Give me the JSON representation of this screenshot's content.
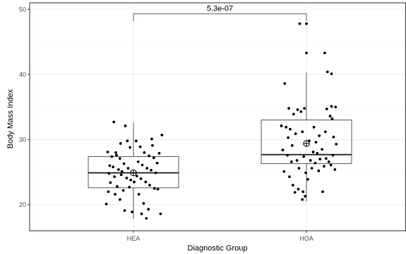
{
  "chart_data": {
    "type": "box",
    "title": "",
    "xlabel": "Diagnostic Group",
    "ylabel": "Body Mass Index",
    "ylim": [
      16,
      51
    ],
    "y_ticks": [
      20,
      30,
      40,
      50
    ],
    "categories": [
      "HEA",
      "HOA"
    ],
    "grid": true,
    "boxes": [
      {
        "category": "HEA",
        "whisker_low": 17.8,
        "q1": 22.6,
        "median": 24.9,
        "q3": 27.4,
        "whisker_high": 32.6,
        "mean": 24.9
      },
      {
        "category": "HOA",
        "whisker_low": 20.5,
        "q1": 26.3,
        "median": 27.7,
        "q3": 33.0,
        "whisker_high": 40.3,
        "mean": 29.4
      }
    ],
    "points": {
      "HEA": [
        {
          "x": -0.38,
          "y": 28.1
        },
        {
          "x": -0.32,
          "y": 27.4
        },
        {
          "x": -0.26,
          "y": 28.0
        },
        {
          "x": -0.2,
          "y": 27.1
        },
        {
          "x": -0.14,
          "y": 26.3
        },
        {
          "x": -0.35,
          "y": 26.0
        },
        {
          "x": -0.3,
          "y": 25.8
        },
        {
          "x": -0.22,
          "y": 25.4
        },
        {
          "x": -0.17,
          "y": 25.1
        },
        {
          "x": -0.08,
          "y": 25.6
        },
        {
          "x": -0.36,
          "y": 24.8
        },
        {
          "x": -0.28,
          "y": 24.3
        },
        {
          "x": -0.18,
          "y": 24.6
        },
        {
          "x": -0.1,
          "y": 24.1
        },
        {
          "x": -0.04,
          "y": 23.8
        },
        {
          "x": -0.34,
          "y": 23.4
        },
        {
          "x": -0.24,
          "y": 22.8
        },
        {
          "x": -0.15,
          "y": 22.2
        },
        {
          "x": -0.06,
          "y": 22.7
        },
        {
          "x": -0.37,
          "y": 22.0
        },
        {
          "x": -0.27,
          "y": 21.6
        },
        {
          "x": -0.2,
          "y": 20.8
        },
        {
          "x": -0.4,
          "y": 20.1
        },
        {
          "x": -0.13,
          "y": 19.1
        },
        {
          "x": -0.02,
          "y": 18.9
        },
        {
          "x": -0.29,
          "y": 32.7
        },
        {
          "x": -0.12,
          "y": 32.1
        },
        {
          "x": -0.19,
          "y": 29.4
        },
        {
          "x": -0.09,
          "y": 29.8
        },
        {
          "x": -0.05,
          "y": 28.8
        },
        {
          "x": 0.04,
          "y": 29.8
        },
        {
          "x": 0.1,
          "y": 28.9
        },
        {
          "x": 0.16,
          "y": 28.0
        },
        {
          "x": 0.23,
          "y": 27.5
        },
        {
          "x": 0.3,
          "y": 27.2
        },
        {
          "x": 0.07,
          "y": 26.6
        },
        {
          "x": 0.13,
          "y": 26.1
        },
        {
          "x": 0.2,
          "y": 25.6
        },
        {
          "x": 0.26,
          "y": 25.3
        },
        {
          "x": 0.33,
          "y": 24.9
        },
        {
          "x": 0.05,
          "y": 24.4
        },
        {
          "x": 0.11,
          "y": 24.0
        },
        {
          "x": 0.18,
          "y": 23.5
        },
        {
          "x": 0.24,
          "y": 23.0
        },
        {
          "x": 0.31,
          "y": 22.5
        },
        {
          "x": 0.36,
          "y": 22.4
        },
        {
          "x": 0.08,
          "y": 21.6
        },
        {
          "x": 0.15,
          "y": 20.2
        },
        {
          "x": 0.22,
          "y": 19.3
        },
        {
          "x": 0.12,
          "y": 18.6
        },
        {
          "x": 0.19,
          "y": 17.9
        },
        {
          "x": 0.28,
          "y": 29.1
        },
        {
          "x": 0.38,
          "y": 27.9
        },
        {
          "x": 0.42,
          "y": 30.7
        },
        {
          "x": 0.4,
          "y": 18.6
        },
        {
          "x": 0.01,
          "y": 23.5
        },
        {
          "x": 0.35,
          "y": 26.4
        },
        {
          "x": -0.25,
          "y": 27.6
        },
        {
          "x": 0.27,
          "y": 30.1
        }
      ],
      "HOA": [
        {
          "x": -0.37,
          "y": 32.1
        },
        {
          "x": -0.3,
          "y": 31.9
        },
        {
          "x": -0.24,
          "y": 31.6
        },
        {
          "x": -0.16,
          "y": 30.9
        },
        {
          "x": -0.06,
          "y": 31.2
        },
        {
          "x": -0.32,
          "y": 38.6
        },
        {
          "x": -0.13,
          "y": 34.6
        },
        {
          "x": -0.26,
          "y": 34.8
        },
        {
          "x": -0.19,
          "y": 33.9
        },
        {
          "x": -0.08,
          "y": 34.3
        },
        {
          "x": -0.03,
          "y": 34.8
        },
        {
          "x": -0.1,
          "y": 47.8
        },
        {
          "x": 0.0,
          "y": 47.8
        },
        {
          "x": 0.0,
          "y": 43.3
        },
        {
          "x": -0.21,
          "y": 29.1
        },
        {
          "x": -0.35,
          "y": 28.4
        },
        {
          "x": -0.28,
          "y": 27.6
        },
        {
          "x": -0.22,
          "y": 26.6
        },
        {
          "x": -0.14,
          "y": 26.8
        },
        {
          "x": -0.04,
          "y": 27.4
        },
        {
          "x": -0.33,
          "y": 25.1
        },
        {
          "x": -0.25,
          "y": 24.3
        },
        {
          "x": -0.11,
          "y": 25.6
        },
        {
          "x": -0.01,
          "y": 24.9
        },
        {
          "x": -0.2,
          "y": 23.0
        },
        {
          "x": -0.12,
          "y": 22.4
        },
        {
          "x": -0.05,
          "y": 22.0
        },
        {
          "x": -0.02,
          "y": 21.3
        },
        {
          "x": -0.06,
          "y": 20.8
        },
        {
          "x": -0.17,
          "y": 21.9
        },
        {
          "x": 0.04,
          "y": 29.8
        },
        {
          "x": 0.1,
          "y": 28.1
        },
        {
          "x": 0.16,
          "y": 27.9
        },
        {
          "x": 0.23,
          "y": 28.5
        },
        {
          "x": 0.29,
          "y": 27.1
        },
        {
          "x": 0.06,
          "y": 26.8
        },
        {
          "x": 0.13,
          "y": 26.4
        },
        {
          "x": 0.2,
          "y": 27.0
        },
        {
          "x": 0.33,
          "y": 26.6
        },
        {
          "x": 0.39,
          "y": 27.6
        },
        {
          "x": 0.08,
          "y": 25.6
        },
        {
          "x": 0.18,
          "y": 25.2
        },
        {
          "x": 0.26,
          "y": 25.9
        },
        {
          "x": 0.36,
          "y": 26.1
        },
        {
          "x": 0.42,
          "y": 25.4
        },
        {
          "x": 0.02,
          "y": 23.9
        },
        {
          "x": 0.24,
          "y": 22.0
        },
        {
          "x": 0.11,
          "y": 31.9
        },
        {
          "x": 0.19,
          "y": 30.6
        },
        {
          "x": 0.28,
          "y": 31.2
        },
        {
          "x": 0.35,
          "y": 33.6
        },
        {
          "x": 0.3,
          "y": 34.7
        },
        {
          "x": 0.37,
          "y": 35.1
        },
        {
          "x": 0.43,
          "y": 35.0
        },
        {
          "x": 0.38,
          "y": 33.2
        },
        {
          "x": 0.27,
          "y": 43.3
        },
        {
          "x": 0.31,
          "y": 40.4
        },
        {
          "x": 0.37,
          "y": 40.1
        },
        {
          "x": 0.44,
          "y": 29.3
        },
        {
          "x": 0.4,
          "y": 30.4
        },
        {
          "x": 0.14,
          "y": 29.6
        },
        {
          "x": -0.27,
          "y": 30.3
        }
      ]
    },
    "annotation": {
      "label": "5.3e-07",
      "from": "HEA",
      "to": "HOA",
      "y": 49.3
    }
  },
  "colors": {
    "background": "#ffffff",
    "panel_border": "#333333",
    "grid_major": "#ebebeb",
    "grid_minor": "#f5f5f5",
    "box_line": "#333333",
    "point": "#000000",
    "mean_marker": "#000000"
  }
}
